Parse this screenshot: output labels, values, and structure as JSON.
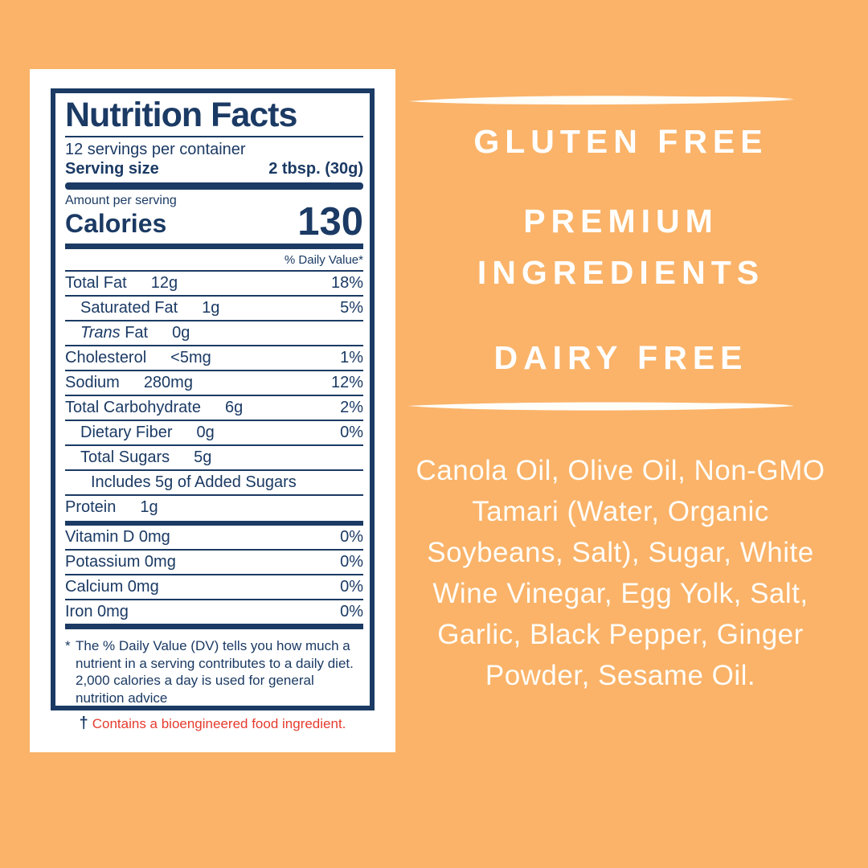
{
  "colors": {
    "background": "#FAB369",
    "label_navy": "#1B3A64",
    "warning_red": "#E63B2E",
    "card_white": "#FFFFFF",
    "panel_text_white": "#FFFDF8"
  },
  "label": {
    "title": "Nutrition Facts",
    "servings_per_container": "12 servings per container",
    "serving_size_label": "Serving size",
    "serving_size_value": "2 tbsp. (30g)",
    "amount_per_serving": "Amount per serving",
    "calories_label": "Calories",
    "calories_value": "130",
    "daily_value_header": "% Daily Value*",
    "main_rows": [
      {
        "label": "Total Fat",
        "amount": "12g",
        "dv": "18%",
        "indent": 0
      },
      {
        "label": "Saturated Fat",
        "amount": "1g",
        "dv": "5%",
        "indent": 1
      },
      {
        "label": "Trans Fat",
        "amount": "0g",
        "dv": "",
        "indent": 1,
        "italic_first": true
      },
      {
        "label": "Cholesterol",
        "amount": "<5mg",
        "dv": "1%",
        "indent": 0
      },
      {
        "label": "Sodium",
        "amount": "280mg",
        "dv": "12%",
        "indent": 0
      },
      {
        "label": "Total Carbohydrate",
        "amount": "6g",
        "dv": "2%",
        "indent": 0
      },
      {
        "label": "Dietary Fiber",
        "amount": "0g",
        "dv": "0%",
        "indent": 1
      },
      {
        "label": "Total Sugars",
        "amount": "5g",
        "dv": "",
        "indent": 1
      },
      {
        "label": "Includes 5g of Added Sugars",
        "amount": "",
        "dv": "",
        "indent": 2
      },
      {
        "label": "Protein",
        "amount": "1g",
        "dv": "",
        "indent": 0
      }
    ],
    "vitamin_rows": [
      {
        "label": "Vitamin D 0mg",
        "amount": "",
        "dv": "0%",
        "indent": 0
      },
      {
        "label": "Potassium 0mg",
        "amount": "",
        "dv": "0%",
        "indent": 0
      },
      {
        "label": "Calcium 0mg",
        "amount": "",
        "dv": "0%",
        "indent": 0
      },
      {
        "label": "Iron 0mg",
        "amount": "",
        "dv": "0%",
        "indent": 0
      }
    ],
    "footnote_marker": "*",
    "footnote": "The % Daily Value (DV) tells you how much a nutrient in a serving contributes to a daily diet. 2,000 calories a day is used for general nutrition advice",
    "bioengineered_marker": "†",
    "bioengineered_text": "Contains a bioengineered food ingredient."
  },
  "right_panel": {
    "headings": [
      "GLUTEN FREE",
      "PREMIUM INGREDIENTS",
      "DAIRY FREE"
    ],
    "ingredients": "Canola Oil, Olive Oil, Non-GMO Tamari (Water, Organic Soybeans, Salt), Sugar, White Wine Vinegar, Egg Yolk, Salt, Garlic, Black Pepper, Ginger Powder, Sesame Oil."
  }
}
